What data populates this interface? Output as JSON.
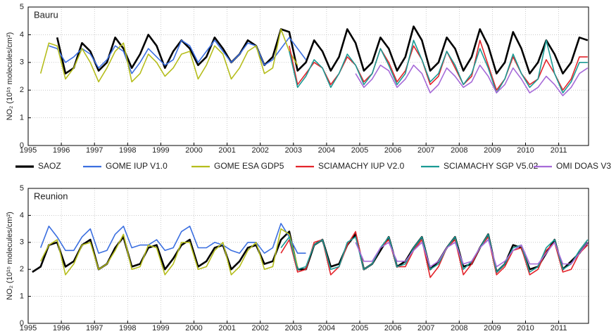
{
  "chart_data": [
    {
      "type": "line",
      "label": "Bauru",
      "ylabel": "NO₂ (10¹⁵ molecules/cm²)",
      "xlim": [
        1995,
        2011.9
      ],
      "xticks": [
        1995,
        1996,
        1997,
        1998,
        1999,
        2000,
        2001,
        2002,
        2003,
        2004,
        2005,
        2006,
        2007,
        2008,
        2009,
        2010,
        2011
      ],
      "ylim": [
        0,
        5
      ],
      "yticks": [
        0,
        1,
        2,
        3,
        4,
        5
      ],
      "grid": true,
      "x": [
        1995.125,
        1995.375,
        1995.625,
        1995.875,
        1996.125,
        1996.375,
        1996.625,
        1996.875,
        1997.125,
        1997.375,
        1997.625,
        1997.875,
        1998.125,
        1998.375,
        1998.625,
        1998.875,
        1999.125,
        1999.375,
        1999.625,
        1999.875,
        2000.125,
        2000.375,
        2000.625,
        2000.875,
        2001.125,
        2001.375,
        2001.625,
        2001.875,
        2002.125,
        2002.375,
        2002.625,
        2002.875,
        2003.125,
        2003.375,
        2003.625,
        2003.875,
        2004.125,
        2004.375,
        2004.625,
        2004.875,
        2005.125,
        2005.375,
        2005.625,
        2005.875,
        2006.125,
        2006.375,
        2006.625,
        2006.875,
        2007.125,
        2007.375,
        2007.625,
        2007.875,
        2008.125,
        2008.375,
        2008.625,
        2008.875,
        2009.125,
        2009.375,
        2009.625,
        2009.875,
        2010.125,
        2010.375,
        2010.625,
        2010.875,
        2011.125,
        2011.375,
        2011.625,
        2011.875
      ],
      "series": [
        {
          "name": "SAOZ",
          "color": "#000000",
          "width": 2.6,
          "values": [
            null,
            null,
            null,
            3.9,
            2.6,
            2.8,
            3.7,
            3.4,
            2.7,
            3.0,
            3.9,
            3.5,
            2.8,
            3.3,
            4.0,
            3.6,
            2.8,
            3.4,
            3.8,
            3.5,
            2.9,
            3.2,
            3.9,
            3.5,
            3.0,
            3.3,
            3.8,
            3.6,
            2.9,
            3.2,
            4.2,
            4.1,
            2.7,
            3.0,
            3.8,
            3.4,
            2.7,
            3.2,
            4.2,
            3.7,
            2.7,
            3.0,
            3.9,
            3.5,
            2.7,
            3.2,
            4.3,
            3.8,
            2.7,
            3.0,
            3.9,
            3.5,
            2.7,
            3.2,
            4.2,
            3.6,
            2.6,
            3.0,
            4.1,
            3.5,
            2.6,
            3.0,
            3.8,
            3.3,
            2.6,
            3.0,
            3.9,
            3.8
          ]
        },
        {
          "name": "GOME IUP V1.0",
          "color": "#3b6fe0",
          "width": 1.6,
          "values": [
            null,
            null,
            3.6,
            3.5,
            3.0,
            3.2,
            3.5,
            3.3,
            2.8,
            3.1,
            3.6,
            3.4,
            2.6,
            3.0,
            3.5,
            3.2,
            2.9,
            3.1,
            3.8,
            3.6,
            3.0,
            3.4,
            3.8,
            3.4,
            3.0,
            3.3,
            3.7,
            3.6,
            2.9,
            3.1,
            3.5,
            3.9,
            3.5,
            3.1,
            null,
            null,
            null,
            null,
            null,
            null,
            null,
            null,
            null,
            null,
            null,
            null,
            null,
            null,
            null,
            null,
            null,
            null,
            null,
            null,
            null,
            null,
            null,
            null,
            null,
            null,
            null,
            null,
            null,
            null,
            null,
            null,
            null,
            null
          ]
        },
        {
          "name": "GOME ESA GDP5",
          "color": "#b5bd1c",
          "width": 1.6,
          "values": [
            null,
            2.6,
            3.7,
            3.6,
            2.4,
            2.8,
            3.5,
            3.0,
            2.3,
            2.8,
            3.4,
            3.7,
            2.3,
            2.6,
            3.3,
            3.0,
            2.5,
            2.8,
            3.3,
            3.4,
            2.4,
            2.9,
            3.6,
            3.3,
            2.4,
            2.8,
            3.4,
            3.6,
            2.6,
            2.8,
            4.2,
            3.4,
            2.9,
            null,
            null,
            null,
            null,
            null,
            null,
            null,
            null,
            null,
            null,
            null,
            null,
            null,
            null,
            null,
            null,
            null,
            null,
            null,
            null,
            null,
            null,
            null,
            null,
            null,
            null,
            null,
            null,
            null,
            null,
            null,
            null,
            null,
            null,
            null
          ]
        },
        {
          "name": "SCIAMACHY IUP V2.0",
          "color": "#e3242b",
          "width": 1.6,
          "values": [
            null,
            null,
            null,
            null,
            null,
            null,
            null,
            null,
            null,
            null,
            null,
            null,
            null,
            null,
            null,
            null,
            null,
            null,
            null,
            null,
            null,
            null,
            null,
            null,
            null,
            null,
            null,
            null,
            null,
            null,
            null,
            3.6,
            2.2,
            2.6,
            3.0,
            2.8,
            2.2,
            2.6,
            3.2,
            2.9,
            2.3,
            2.6,
            3.5,
            3.0,
            2.3,
            2.7,
            3.6,
            3.1,
            2.2,
            2.5,
            3.4,
            2.8,
            2.2,
            2.5,
            3.8,
            2.9,
            2.0,
            2.4,
            3.2,
            2.6,
            2.2,
            2.4,
            3.1,
            2.6,
            2.0,
            2.4,
            3.2,
            3.2
          ]
        },
        {
          "name": "SCIAMACHY SGP V5.02",
          "color": "#1a9a94",
          "width": 1.6,
          "values": [
            null,
            null,
            null,
            null,
            null,
            null,
            null,
            null,
            null,
            null,
            null,
            null,
            null,
            null,
            null,
            null,
            null,
            null,
            null,
            null,
            null,
            null,
            null,
            null,
            null,
            null,
            null,
            null,
            null,
            null,
            null,
            3.4,
            2.1,
            2.5,
            3.1,
            2.8,
            2.1,
            2.6,
            3.3,
            2.9,
            2.2,
            2.6,
            3.5,
            2.9,
            2.2,
            2.6,
            3.8,
            3.1,
            2.3,
            2.6,
            3.4,
            2.9,
            2.2,
            2.6,
            3.5,
            2.8,
            1.9,
            2.4,
            3.3,
            2.6,
            2.1,
            2.4,
            3.8,
            2.6,
            1.9,
            2.3,
            3.0,
            3.0
          ]
        },
        {
          "name": "OMI DOAS V3",
          "color": "#a66ad8",
          "width": 1.6,
          "values": [
            null,
            null,
            null,
            null,
            null,
            null,
            null,
            null,
            null,
            null,
            null,
            null,
            null,
            null,
            null,
            null,
            null,
            null,
            null,
            null,
            null,
            null,
            null,
            null,
            null,
            null,
            null,
            null,
            null,
            null,
            null,
            null,
            null,
            null,
            null,
            null,
            null,
            null,
            null,
            2.6,
            2.1,
            2.4,
            2.9,
            2.7,
            2.1,
            2.4,
            2.9,
            2.6,
            1.9,
            2.2,
            2.8,
            2.5,
            2.1,
            2.3,
            2.9,
            2.5,
            1.9,
            2.2,
            2.8,
            2.4,
            1.9,
            2.1,
            2.5,
            2.2,
            1.8,
            2.1,
            2.6,
            2.8
          ]
        }
      ]
    },
    {
      "type": "line",
      "label": "Reunion",
      "ylabel": "NO₂ (10¹⁵ molecules/cm²)",
      "xlim": [
        1995,
        2011.9
      ],
      "xticks": [
        1995,
        1996,
        1997,
        1998,
        1999,
        2000,
        2001,
        2002,
        2003,
        2004,
        2005,
        2006,
        2007,
        2008,
        2009,
        2010,
        2011
      ],
      "ylim": [
        0,
        5
      ],
      "yticks": [
        0,
        1,
        2,
        3,
        4,
        5
      ],
      "grid": true,
      "x": [
        1995.125,
        1995.375,
        1995.625,
        1995.875,
        1996.125,
        1996.375,
        1996.625,
        1996.875,
        1997.125,
        1997.375,
        1997.625,
        1997.875,
        1998.125,
        1998.375,
        1998.625,
        1998.875,
        1999.125,
        1999.375,
        1999.625,
        1999.875,
        2000.125,
        2000.375,
        2000.625,
        2000.875,
        2001.125,
        2001.375,
        2001.625,
        2001.875,
        2002.125,
        2002.375,
        2002.625,
        2002.875,
        2003.125,
        2003.375,
        2003.625,
        2003.875,
        2004.125,
        2004.375,
        2004.625,
        2004.875,
        2005.125,
        2005.375,
        2005.625,
        2005.875,
        2006.125,
        2006.375,
        2006.625,
        2006.875,
        2007.125,
        2007.375,
        2007.625,
        2007.875,
        2008.125,
        2008.375,
        2008.625,
        2008.875,
        2009.125,
        2009.375,
        2009.625,
        2009.875,
        2010.125,
        2010.375,
        2010.625,
        2010.875,
        2011.125,
        2011.375,
        2011.625,
        2011.875
      ],
      "series": [
        {
          "color": "#000000",
          "width": 2.6,
          "values": [
            1.9,
            2.1,
            2.9,
            3.0,
            2.1,
            2.3,
            2.9,
            3.1,
            2.0,
            2.2,
            2.8,
            3.2,
            2.1,
            2.2,
            2.8,
            2.9,
            2.0,
            2.4,
            2.9,
            3.1,
            2.1,
            2.3,
            2.8,
            2.9,
            2.0,
            2.3,
            2.8,
            2.9,
            2.2,
            2.3,
            3.1,
            3.4,
            2.0,
            2.0,
            2.9,
            3.1,
            2.1,
            2.2,
            2.9,
            3.3,
            2.0,
            2.2,
            2.7,
            3.2,
            2.1,
            2.3,
            2.8,
            3.2,
            2.0,
            2.3,
            2.8,
            3.2,
            2.1,
            2.2,
            2.8,
            3.3,
            1.9,
            2.2,
            2.9,
            2.8,
            2.0,
            2.1,
            2.6,
            3.1,
            2.0,
            2.3,
            2.6,
            3.0
          ]
        },
        {
          "color": "#3b6fe0",
          "width": 1.6,
          "values": [
            null,
            2.8,
            3.6,
            3.2,
            2.7,
            2.7,
            3.2,
            3.5,
            2.6,
            2.7,
            3.3,
            3.6,
            2.8,
            2.9,
            2.9,
            3.1,
            2.7,
            2.8,
            3.4,
            3.6,
            2.8,
            2.8,
            3.0,
            2.9,
            2.7,
            2.6,
            3.0,
            3.0,
            2.6,
            2.8,
            3.7,
            3.2,
            2.6,
            2.6,
            null,
            null,
            null,
            null,
            null,
            null,
            null,
            null,
            null,
            null,
            null,
            null,
            null,
            null,
            null,
            null,
            null,
            null,
            null,
            null,
            null,
            null,
            null,
            null,
            null,
            null,
            null,
            null,
            null,
            null,
            null,
            null,
            null,
            null
          ]
        },
        {
          "color": "#b5bd1c",
          "width": 1.6,
          "values": [
            null,
            2.3,
            2.9,
            3.1,
            1.8,
            2.2,
            2.9,
            3.0,
            2.0,
            2.2,
            2.7,
            3.3,
            2.0,
            2.1,
            2.9,
            2.8,
            1.8,
            2.2,
            3.0,
            3.0,
            2.0,
            2.1,
            2.7,
            3.0,
            1.8,
            2.1,
            2.7,
            3.0,
            2.0,
            2.1,
            3.5,
            3.3,
            2.1,
            null,
            null,
            null,
            null,
            null,
            null,
            null,
            null,
            null,
            null,
            null,
            null,
            null,
            null,
            null,
            null,
            null,
            null,
            null,
            null,
            null,
            null,
            null,
            null,
            null,
            null,
            null,
            null,
            null,
            null,
            null,
            null,
            null,
            null,
            null
          ]
        },
        {
          "color": "#e3242b",
          "width": 1.6,
          "values": [
            null,
            null,
            null,
            null,
            null,
            null,
            null,
            null,
            null,
            null,
            null,
            null,
            null,
            null,
            null,
            null,
            null,
            null,
            null,
            null,
            null,
            null,
            null,
            null,
            null,
            null,
            null,
            null,
            null,
            null,
            2.6,
            3.1,
            1.9,
            2.0,
            3.0,
            3.1,
            1.8,
            2.1,
            2.9,
            3.4,
            2.0,
            2.2,
            2.8,
            3.1,
            2.1,
            2.1,
            2.7,
            3.1,
            1.7,
            2.1,
            2.8,
            3.1,
            1.8,
            2.2,
            2.8,
            3.2,
            1.8,
            2.1,
            2.7,
            2.8,
            1.8,
            2.0,
            2.7,
            3.0,
            1.9,
            2.0,
            2.6,
            2.9
          ]
        },
        {
          "color": "#1a9a94",
          "width": 1.6,
          "values": [
            null,
            null,
            null,
            null,
            null,
            null,
            null,
            null,
            null,
            null,
            null,
            null,
            null,
            null,
            null,
            null,
            null,
            null,
            null,
            null,
            null,
            null,
            null,
            null,
            null,
            null,
            null,
            null,
            null,
            null,
            2.8,
            3.2,
            2.0,
            2.1,
            2.9,
            3.1,
            2.0,
            2.1,
            3.0,
            3.2,
            2.0,
            2.2,
            2.8,
            3.2,
            2.1,
            2.2,
            2.8,
            3.2,
            2.0,
            2.2,
            2.8,
            3.2,
            2.0,
            2.3,
            2.8,
            3.3,
            1.9,
            2.2,
            2.8,
            2.9,
            1.9,
            2.1,
            2.8,
            3.1,
            2.0,
            2.2,
            2.7,
            3.1
          ]
        },
        {
          "color": "#a66ad8",
          "width": 1.6,
          "values": [
            null,
            null,
            null,
            null,
            null,
            null,
            null,
            null,
            null,
            null,
            null,
            null,
            null,
            null,
            null,
            null,
            null,
            null,
            null,
            null,
            null,
            null,
            null,
            null,
            null,
            null,
            null,
            null,
            null,
            null,
            null,
            null,
            null,
            null,
            null,
            null,
            null,
            null,
            null,
            3.0,
            2.3,
            2.3,
            2.8,
            3.0,
            2.3,
            2.3,
            2.7,
            3.0,
            2.1,
            2.3,
            2.8,
            3.0,
            2.2,
            2.3,
            2.8,
            3.1,
            2.1,
            2.3,
            2.7,
            2.9,
            2.2,
            2.2,
            2.6,
            3.0,
            2.2,
            2.2,
            2.6,
            3.0
          ]
        }
      ]
    }
  ]
}
